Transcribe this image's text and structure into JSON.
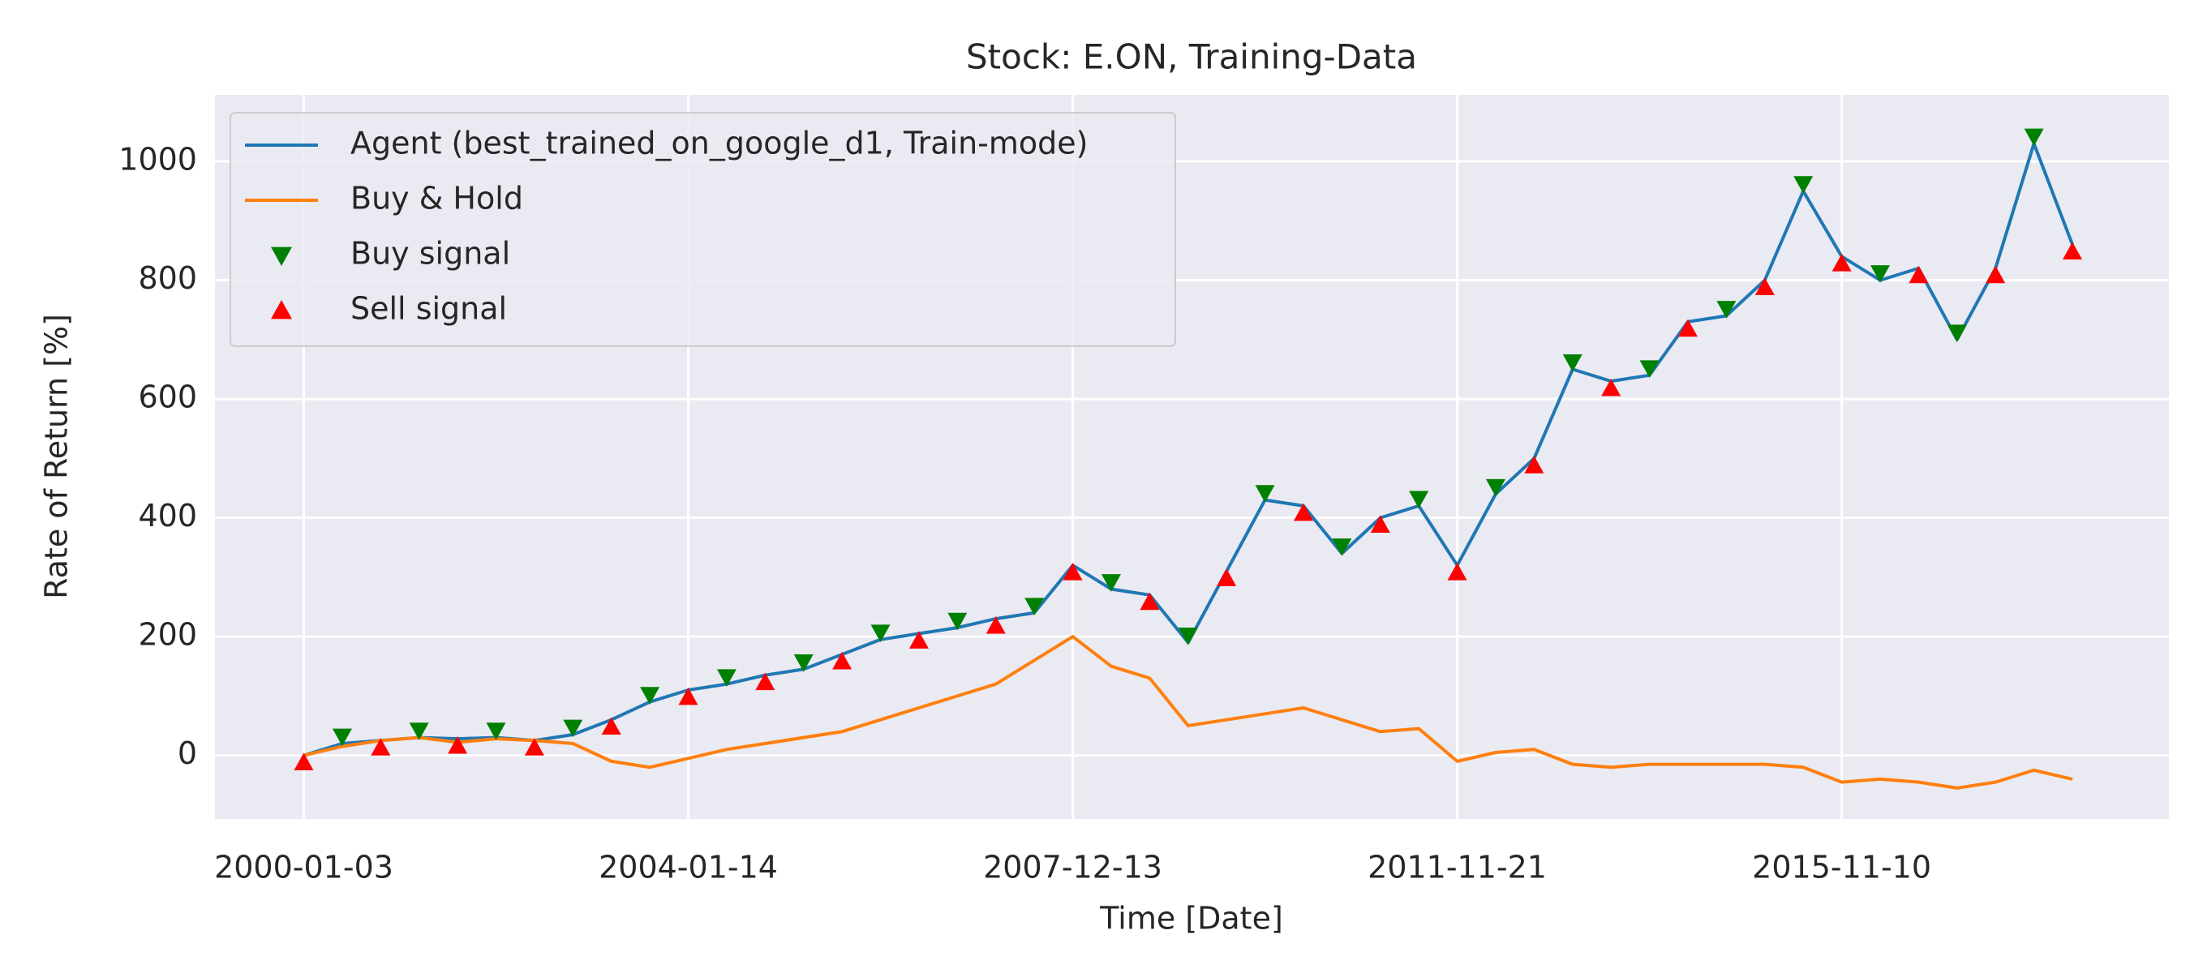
{
  "chart_data": {
    "type": "line",
    "title": "Stock: E.ON, Training-Data",
    "x_label": "Time [Date]",
    "y_label": "Rate of Return [%]",
    "x": [
      0,
      100,
      200,
      300,
      400,
      500,
      600,
      700,
      800,
      900,
      1000,
      1100,
      1200,
      1300,
      1400,
      1500,
      1600,
      1700,
      1800,
      1900,
      2000,
      2100,
      2200,
      2300,
      2400,
      2500,
      2600,
      2700,
      2800,
      2900,
      3000,
      3100,
      3200,
      3300,
      3400,
      3500,
      3600,
      3700,
      3800,
      3900,
      4000,
      4100,
      4200,
      4300,
      4400,
      4500,
      4600
    ],
    "series": [
      {
        "name": "Agent (best_trained_on_google_d1, Train-mode)",
        "color": "#1f77b4",
        "values": [
          0,
          20,
          25,
          30,
          28,
          30,
          25,
          35,
          60,
          90,
          110,
          120,
          135,
          145,
          170,
          195,
          205,
          215,
          230,
          240,
          320,
          280,
          270,
          190,
          310,
          430,
          420,
          340,
          400,
          420,
          320,
          440,
          500,
          650,
          630,
          640,
          730,
          740,
          800,
          950,
          840,
          800,
          820,
          700,
          820,
          1030,
          860
        ]
      },
      {
        "name": "Buy & Hold",
        "color": "#ff7f0e",
        "values": [
          0,
          15,
          25,
          30,
          22,
          28,
          25,
          20,
          -10,
          -20,
          -5,
          10,
          20,
          30,
          40,
          60,
          80,
          100,
          120,
          160,
          200,
          150,
          130,
          50,
          60,
          70,
          80,
          60,
          40,
          45,
          -10,
          5,
          10,
          -15,
          -20,
          -15,
          -15,
          -15,
          -15,
          -20,
          -45,
          -40,
          -45,
          -55,
          -45,
          -25,
          -40
        ]
      }
    ],
    "signals": [
      {
        "name": "Buy signal",
        "color": "#008000",
        "marker": "triangle-down",
        "x": [
          100,
          300,
          500,
          700,
          900,
          1100,
          1300,
          1500,
          1700,
          1900,
          2100,
          2300,
          2500,
          2700,
          2900,
          3100,
          3300,
          3500,
          3700,
          3900,
          4100,
          4300,
          4500
        ],
        "values": [
          32,
          42,
          42,
          47,
          102,
          132,
          157,
          207,
          227,
          252,
          292,
          202,
          442,
          352,
          432,
          452,
          662,
          652,
          752,
          962,
          812,
          712,
          1042
        ]
      },
      {
        "name": "Sell signal",
        "color": "#ff0000",
        "marker": "triangle-up",
        "x": [
          0,
          200,
          400,
          600,
          800,
          1000,
          1200,
          1400,
          1600,
          1800,
          2000,
          2200,
          2400,
          2600,
          2800,
          3000,
          3200,
          3400,
          3600,
          3800,
          4000,
          4200,
          4400,
          4600
        ],
        "values": [
          -12,
          13,
          16,
          13,
          48,
          98,
          123,
          158,
          193,
          218,
          308,
          258,
          298,
          408,
          388,
          308,
          488,
          618,
          718,
          788,
          828,
          808,
          808,
          848
        ]
      }
    ],
    "xlim": [
      -231,
      4851
    ],
    "ylim": [
      -107,
      1112
    ],
    "xticks": [
      {
        "value": 0,
        "label": "2000-01-03"
      },
      {
        "value": 1000,
        "label": "2004-01-14"
      },
      {
        "value": 2000,
        "label": "2007-12-13"
      },
      {
        "value": 3000,
        "label": "2011-11-21"
      },
      {
        "value": 4000,
        "label": "2015-11-10"
      }
    ],
    "yticks": [
      0,
      200,
      400,
      600,
      800,
      1000
    ],
    "grid": true,
    "legend": "upper left"
  }
}
